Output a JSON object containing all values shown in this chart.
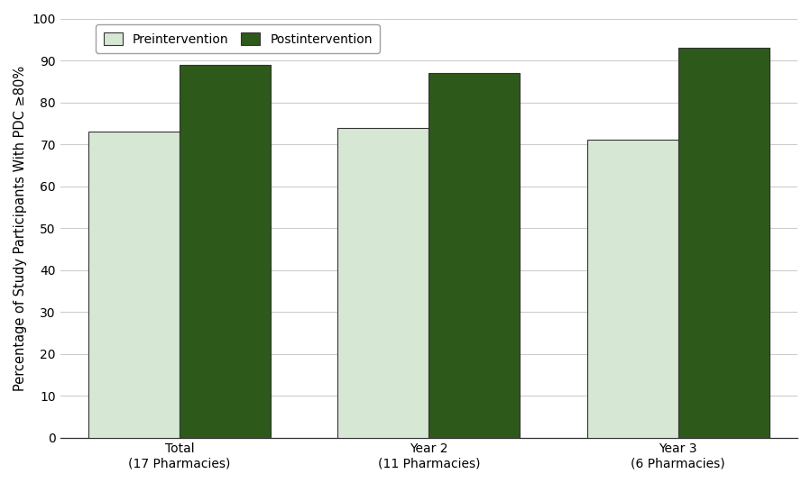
{
  "categories": [
    "Total\n(17 Pharmacies)",
    "Year 2\n(11 Pharmacies)",
    "Year 3\n(6 Pharmacies)"
  ],
  "preintervention": [
    73,
    74,
    71
  ],
  "postintervention": [
    89,
    87,
    93
  ],
  "pre_color": "#d6e8d4",
  "post_color": "#2d5a1b",
  "pre_label": "Preintervention",
  "post_label": "Postintervention",
  "ylabel": "Percentage of Study Participants With PDC ≥80%",
  "ylim": [
    0,
    100
  ],
  "yticks": [
    0,
    10,
    20,
    30,
    40,
    50,
    60,
    70,
    80,
    90,
    100
  ],
  "bar_width": 0.42,
  "legend_edgecolor": "#888888",
  "axis_edgecolor": "#333333",
  "grid_color": "#cccccc",
  "background_color": "#ffffff",
  "font_size_ticks": 10,
  "font_size_ylabel": 10.5,
  "font_size_legend": 10
}
